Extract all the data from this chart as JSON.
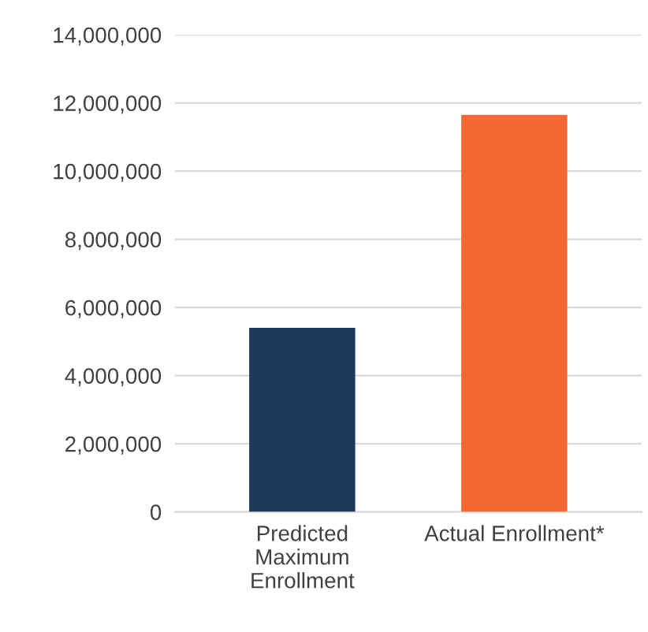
{
  "chart_data": {
    "type": "bar",
    "categories": [
      "Predicted\nMaximum\nEnrollment",
      "Actual Enrollment*"
    ],
    "values": [
      5400000,
      11650000
    ],
    "colors": [
      "#1b3a5c",
      "#f26a32"
    ],
    "ylim": [
      0,
      14000000
    ],
    "yticks": [
      {
        "value": 0,
        "label": "0"
      },
      {
        "value": 2000000,
        "label": "2,000,000"
      },
      {
        "value": 4000000,
        "label": "4,000,000"
      },
      {
        "value": 6000000,
        "label": "6,000,000"
      },
      {
        "value": 8000000,
        "label": "8,000,000"
      },
      {
        "value": 10000000,
        "label": "10,000,000"
      },
      {
        "value": 12000000,
        "label": "12,000,000"
      },
      {
        "value": 14000000,
        "label": "14,000,000"
      }
    ],
    "grid": "y"
  }
}
